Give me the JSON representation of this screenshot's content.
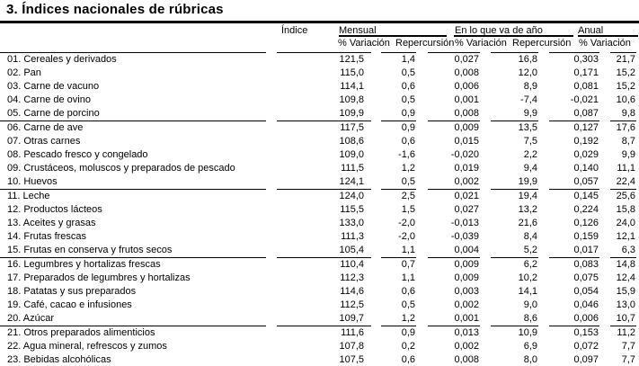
{
  "title": "3. Índices nacionales de rúbricas",
  "table": {
    "index_column_header": "Índice",
    "groups": {
      "mensual": "Mensual",
      "ytd": "En lo que va de año",
      "anual": "Anual"
    },
    "subheaders": {
      "variacion": "% Variación",
      "repercusion": "Repercursión"
    },
    "column_semantics": [
      "rubric-label",
      "index-value",
      "monthly-variation",
      "monthly-repercussion",
      "ytd-variation",
      "ytd-repercussion",
      "annual-variation"
    ],
    "row_groups": [
      [
        [
          "01. Cereales y derivados",
          "121,5",
          "1,4",
          "0,027",
          "16,8",
          "0,303",
          "21,7"
        ],
        [
          "02. Pan",
          "115,0",
          "0,5",
          "0,008",
          "12,0",
          "0,171",
          "15,2"
        ],
        [
          "03. Carne de vacuno",
          "114,1",
          "0,6",
          "0,006",
          "8,9",
          "0,081",
          "15,2"
        ],
        [
          "04. Carne de ovino",
          "109,8",
          "0,5",
          "0,001",
          "-7,4",
          "-0,021",
          "10,6"
        ],
        [
          "05. Carne de porcino",
          "109,9",
          "0,9",
          "0,008",
          "9,9",
          "0,087",
          "9,8"
        ]
      ],
      [
        [
          "06. Carne de ave",
          "117,5",
          "0,9",
          "0,009",
          "13,5",
          "0,127",
          "17,6"
        ],
        [
          "07. Otras carnes",
          "108,6",
          "0,6",
          "0,015",
          "7,5",
          "0,192",
          "8,7"
        ],
        [
          "08. Pescado fresco y congelado",
          "109,0",
          "-1,6",
          "-0,020",
          "2,2",
          "0,029",
          "9,9"
        ],
        [
          "09. Crustáceos, moluscos y preparados de pescado",
          "111,5",
          "1,2",
          "0,019",
          "9,4",
          "0,140",
          "11,1"
        ],
        [
          "10. Huevos",
          "124,1",
          "0,5",
          "0,002",
          "19,9",
          "0,057",
          "22,4"
        ]
      ],
      [
        [
          "11. Leche",
          "124,0",
          "2,5",
          "0,021",
          "19,4",
          "0,145",
          "25,6"
        ],
        [
          "12. Productos lácteos",
          "115,5",
          "1,5",
          "0,027",
          "13,2",
          "0,224",
          "15,8"
        ],
        [
          "13. Aceites y grasas",
          "133,0",
          "-2,0",
          "-0,013",
          "21,6",
          "0,126",
          "24,0"
        ],
        [
          "14. Frutas frescas",
          "111,3",
          "-2,0",
          "-0,039",
          "8,4",
          "0,159",
          "12,1"
        ],
        [
          "15. Frutas en conserva y frutos secos",
          "105,4",
          "1,1",
          "0,004",
          "5,2",
          "0,017",
          "6,3"
        ]
      ],
      [
        [
          "16. Legumbres y hortalizas frescas",
          "110,4",
          "0,7",
          "0,009",
          "6,2",
          "0,083",
          "14,8"
        ],
        [
          "17. Preparados de legumbres y hortalizas",
          "112,3",
          "1,1",
          "0,009",
          "10,2",
          "0,075",
          "12,4"
        ],
        [
          "18. Patatas y sus preparados",
          "114,6",
          "0,6",
          "0,003",
          "14,1",
          "0,054",
          "15,9"
        ],
        [
          "19. Café, cacao e infusiones",
          "112,5",
          "0,5",
          "0,002",
          "9,0",
          "0,046",
          "13,0"
        ],
        [
          "20. Azúcar",
          "109,7",
          "1,2",
          "0,001",
          "8,6",
          "0,006",
          "10,7"
        ]
      ],
      [
        [
          "21. Otros preparados alimenticios",
          "111,6",
          "0,9",
          "0,013",
          "10,9",
          "0,153",
          "11,2"
        ],
        [
          "22. Agua mineral, refrescos y zumos",
          "107,8",
          "0,2",
          "0,002",
          "6,9",
          "0,072",
          "7,7"
        ],
        [
          "23. Bebidas alcohólicas",
          "107,5",
          "0,6",
          "0,008",
          "8,0",
          "0,097",
          "7,7"
        ]
      ]
    ],
    "colors": {
      "text": "#000000",
      "rule": "#000000",
      "background": "#ffffff"
    }
  }
}
